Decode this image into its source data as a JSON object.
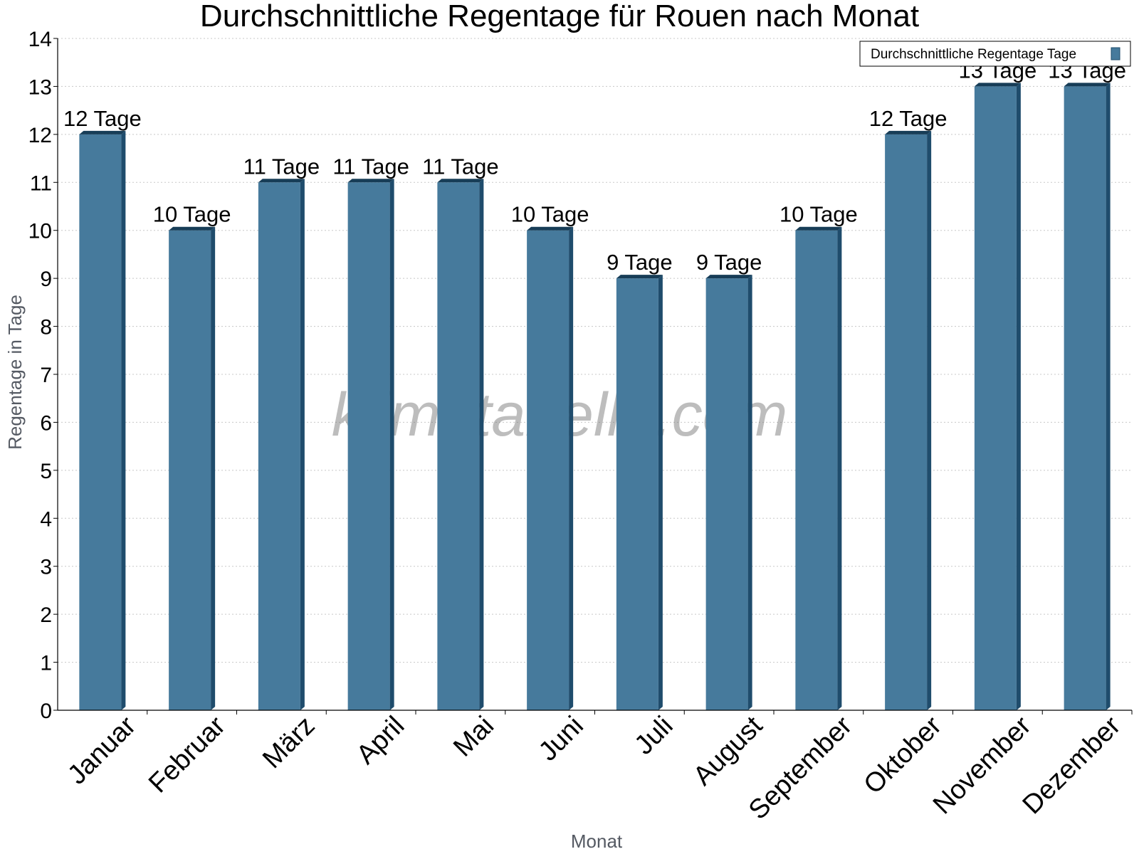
{
  "chart_data": {
    "type": "bar",
    "title": "Durchschnittliche Regentage für Rouen nach Monat",
    "xlabel": "Monat",
    "ylabel": "Regentage in Tage",
    "categories": [
      "Januar",
      "Februar",
      "März",
      "April",
      "Mai",
      "Juni",
      "Juli",
      "August",
      "September",
      "Oktober",
      "November",
      "Dezember"
    ],
    "series": [
      {
        "name": "Durchschnittliche Regentage Tage",
        "values": [
          12,
          10,
          11,
          11,
          11,
          10,
          9,
          9,
          10,
          12,
          13,
          13
        ]
      }
    ],
    "data_labels": [
      "12 Tage",
      "10 Tage",
      "11 Tage",
      "11 Tage",
      "11 Tage",
      "10 Tage",
      "9 Tage",
      "9 Tage",
      "10 Tage",
      "12 Tage",
      "13 Tage",
      "13 Tage"
    ],
    "ylim": [
      0,
      14
    ],
    "yticks": [
      0,
      1,
      2,
      3,
      4,
      5,
      6,
      7,
      8,
      9,
      10,
      11,
      12,
      13,
      14
    ],
    "grid": true,
    "legend_position": "top-right",
    "watermark": "klimatabelle.com",
    "colors": {
      "bar_face": "#467a9c",
      "bar_side": "#1f4c6c",
      "bar_top": "#173d57",
      "axis": "#000000",
      "grid": "#c8c8c8",
      "axis_title": "#555a63"
    }
  }
}
